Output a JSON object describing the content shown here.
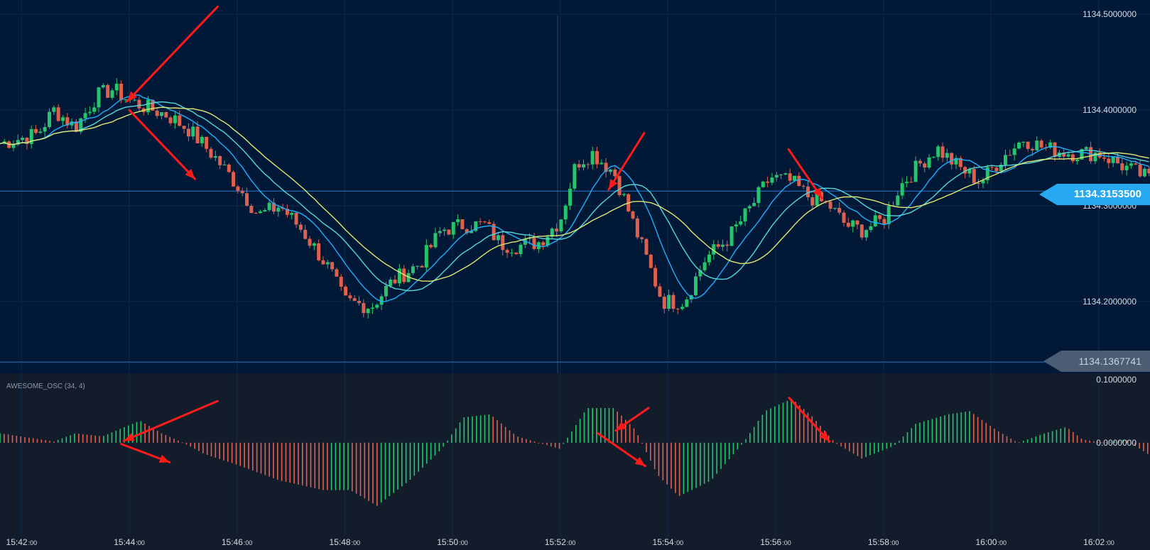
{
  "indicator_label": "AWESOME_OSC (34, 4)",
  "current_price_label": "1134.3153500",
  "reference_price_label": "1134.1367741",
  "colors": {
    "main_bg": "#011937",
    "osc_bg": "#121c2b",
    "grid": "#0e2a47",
    "candle_up": "#27c46b",
    "candle_down": "#e0604e",
    "ma_fast": "#1fb0ff",
    "ma_mid": "#54d8d8",
    "ma_slow": "#dfe873",
    "price_line": "#2a78c9",
    "current_tag": "#26a9f0",
    "ref_tag": "#4a5d72",
    "arrow": "#ff1a1a",
    "axis_text": "#d3dce6"
  },
  "chart_data": [
    {
      "type": "candlestick",
      "title": "",
      "y_axis_labels": [
        "1134.5000000",
        "1134.4000000",
        "1134.3000000",
        "1134.2000000"
      ],
      "y_range": [
        1134.125,
        1134.515
      ],
      "x_range_minutes": [
        -0.4,
        20.95
      ],
      "x_tick_labels": [
        {
          "h": "15:42",
          "s": ":00"
        },
        {
          "h": "15:44",
          "s": ":00"
        },
        {
          "h": "15:46",
          "s": ":00"
        },
        {
          "h": "15:48",
          "s": ":00"
        },
        {
          "h": "15:50",
          "s": ":00"
        },
        {
          "h": "15:52",
          "s": ":00"
        },
        {
          "h": "15:54",
          "s": ":00"
        },
        {
          "h": "15:56",
          "s": ":00"
        },
        {
          "h": "15:58",
          "s": ":00"
        },
        {
          "h": "16:00",
          "s": ":00"
        },
        {
          "h": "16:02",
          "s": ":00"
        }
      ],
      "close_path": [
        [
          -0.4,
          1134.365
        ],
        [
          0.3,
          1134.375
        ],
        [
          0.6,
          1134.4
        ],
        [
          1.0,
          1134.382
        ],
        [
          1.4,
          1134.415
        ],
        [
          1.7,
          1134.422
        ],
        [
          2.0,
          1134.41
        ],
        [
          2.3,
          1134.403
        ],
        [
          2.7,
          1134.395
        ],
        [
          3.1,
          1134.38
        ],
        [
          3.6,
          1134.35
        ],
        [
          4.0,
          1134.322
        ],
        [
          4.4,
          1134.29
        ],
        [
          4.8,
          1134.3
        ],
        [
          5.2,
          1134.275
        ],
        [
          5.7,
          1134.235
        ],
        [
          6.0,
          1134.2
        ],
        [
          6.5,
          1134.195
        ],
        [
          6.9,
          1134.222
        ],
        [
          7.4,
          1134.24
        ],
        [
          7.8,
          1134.275
        ],
        [
          8.2,
          1134.28
        ],
        [
          8.6,
          1134.28
        ],
        [
          8.9,
          1134.26
        ],
        [
          9.2,
          1134.258
        ],
        [
          9.6,
          1134.262
        ],
        [
          10.0,
          1134.285
        ],
        [
          10.3,
          1134.345
        ],
        [
          10.6,
          1134.355
        ],
        [
          11.0,
          1134.335
        ],
        [
          11.5,
          1134.26
        ],
        [
          11.9,
          1134.2
        ],
        [
          12.3,
          1134.2
        ],
        [
          12.7,
          1134.245
        ],
        [
          13.1,
          1134.265
        ],
        [
          13.5,
          1134.295
        ],
        [
          13.9,
          1134.33
        ],
        [
          14.3,
          1134.325
        ],
        [
          14.6,
          1134.31
        ],
        [
          15.0,
          1134.3
        ],
        [
          15.3,
          1134.28
        ],
        [
          15.6,
          1134.275
        ],
        [
          16.0,
          1134.285
        ],
        [
          16.3,
          1134.32
        ],
        [
          16.7,
          1134.345
        ],
        [
          17.0,
          1134.36
        ],
        [
          17.4,
          1134.34
        ],
        [
          17.8,
          1134.325
        ],
        [
          18.2,
          1134.35
        ],
        [
          18.6,
          1134.37
        ],
        [
          19.0,
          1134.36
        ],
        [
          19.5,
          1134.355
        ],
        [
          20.0,
          1134.355
        ],
        [
          20.5,
          1134.34
        ],
        [
          20.95,
          1134.328
        ]
      ],
      "series": [
        {
          "name": "",
          "type": "ma",
          "period": 10,
          "color_key": "ma_fast"
        },
        {
          "name": "",
          "type": "ma",
          "period": 18,
          "color_key": "ma_mid"
        },
        {
          "name": "",
          "type": "ma",
          "period": 26,
          "color_key": "ma_slow"
        }
      ],
      "horizontal_lines": [
        1134.31535,
        1134.1367741
      ]
    },
    {
      "type": "bar",
      "title": "AWESOME_OSC (34, 4)",
      "y_axis_labels": [
        "0.1000000",
        "0.0000000"
      ],
      "y_range": [
        -0.17,
        0.11
      ],
      "x_range_minutes": [
        -0.4,
        20.95
      ],
      "value_path": [
        [
          -0.4,
          0.015
        ],
        [
          0.6,
          0.002
        ],
        [
          1.0,
          0.015
        ],
        [
          1.5,
          0.01
        ],
        [
          2.2,
          0.035
        ],
        [
          2.6,
          0.015
        ],
        [
          3.0,
          0.0
        ],
        [
          3.4,
          -0.018
        ],
        [
          4.0,
          -0.035
        ],
        [
          4.8,
          -0.06
        ],
        [
          5.6,
          -0.075
        ],
        [
          6.1,
          -0.075
        ],
        [
          6.6,
          -0.1
        ],
        [
          7.2,
          -0.06
        ],
        [
          7.8,
          -0.01
        ],
        [
          8.2,
          0.04
        ],
        [
          8.7,
          0.045
        ],
        [
          9.2,
          0.01
        ],
        [
          9.6,
          0.0
        ],
        [
          10.0,
          -0.01
        ],
        [
          10.5,
          0.055
        ],
        [
          11.0,
          0.055
        ],
        [
          11.4,
          0.02
        ],
        [
          11.8,
          -0.05
        ],
        [
          12.2,
          -0.085
        ],
        [
          12.8,
          -0.06
        ],
        [
          13.4,
          0.0
        ],
        [
          13.8,
          0.05
        ],
        [
          14.3,
          0.07
        ],
        [
          14.7,
          0.04
        ],
        [
          15.1,
          0.0
        ],
        [
          15.6,
          -0.025
        ],
        [
          16.2,
          -0.005
        ],
        [
          16.6,
          0.03
        ],
        [
          17.2,
          0.045
        ],
        [
          17.6,
          0.05
        ],
        [
          18.1,
          0.02
        ],
        [
          18.5,
          0.0
        ],
        [
          19.0,
          0.015
        ],
        [
          19.4,
          0.025
        ],
        [
          19.7,
          0.005
        ],
        [
          20.1,
          0.0
        ],
        [
          20.5,
          0.005
        ],
        [
          20.95,
          -0.02
        ]
      ]
    }
  ],
  "annotations": [
    {
      "name": "arrow-price-top-down",
      "target": "price",
      "x1": 3.64,
      "y1": 1134.508,
      "x2": 1.96,
      "y2": 1134.409
    },
    {
      "name": "arrow-price-decline",
      "target": "price",
      "x1": 2.0,
      "y1": 1134.4,
      "x2": 3.22,
      "y2": 1134.328
    },
    {
      "name": "arrow-price-peak",
      "target": "price",
      "x1": 11.56,
      "y1": 1134.376,
      "x2": 10.9,
      "y2": 1134.317
    },
    {
      "name": "arrow-price-right",
      "target": "price",
      "x1": 14.24,
      "y1": 1134.359,
      "x2": 14.86,
      "y2": 1134.308
    },
    {
      "name": "arrow-osc-cross-left",
      "target": "osc",
      "x1": 3.64,
      "y1": 0.066,
      "x2": 1.9,
      "y2": 0.003
    },
    {
      "name": "arrow-osc-down-left",
      "target": "osc",
      "x1": 1.85,
      "y1": -0.002,
      "x2": 2.75,
      "y2": -0.031
    },
    {
      "name": "arrow-osc-peak",
      "target": "osc",
      "x1": 11.64,
      "y1": 0.055,
      "x2": 11.03,
      "y2": 0.019
    },
    {
      "name": "arrow-osc-drop",
      "target": "osc",
      "x1": 10.7,
      "y1": 0.015,
      "x2": 11.58,
      "y2": -0.037
    },
    {
      "name": "arrow-osc-cross-right",
      "target": "osc",
      "x1": 14.25,
      "y1": 0.071,
      "x2": 15.0,
      "y2": 0.002
    }
  ]
}
